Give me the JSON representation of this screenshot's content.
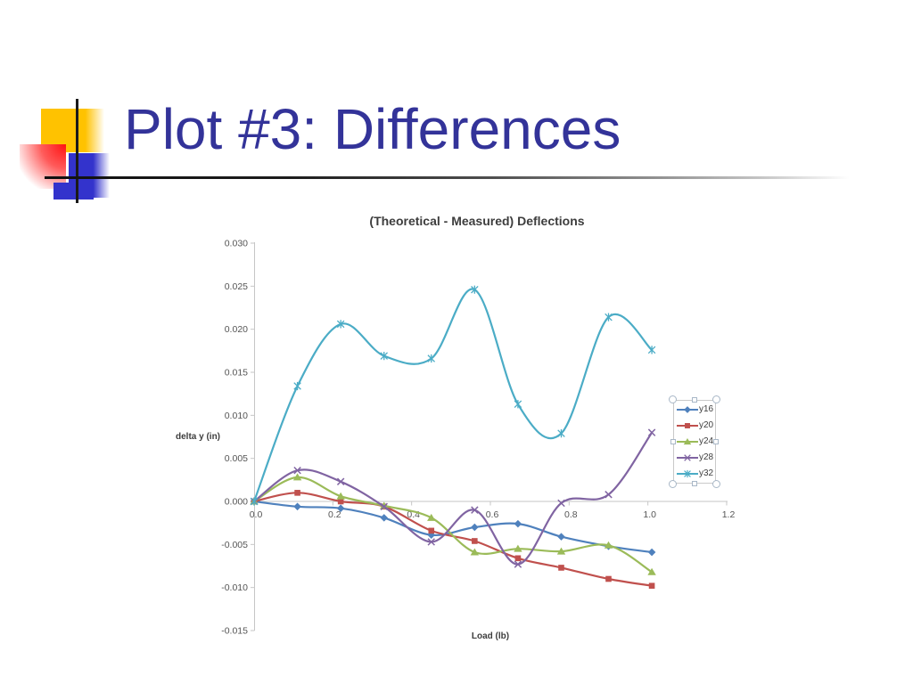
{
  "slide": {
    "title": "Plot #3: Differences"
  },
  "theme": {
    "title_color": "#333399",
    "accent_yellow": "#FFC200",
    "accent_red": "#FF1111",
    "accent_blue": "#3333CC",
    "axis_color": "#c6c6c6",
    "tick_text_color": "#555555"
  },
  "chart_data": {
    "type": "line",
    "title": "(Theoretical - Measured) Deflections",
    "xlabel": "Load (lb)",
    "ylabel": "delta y (in)",
    "smooth": true,
    "grid": false,
    "legend_position": "right-middle",
    "xlim": [
      0,
      1.2
    ],
    "ylim": [
      -0.015,
      0.03
    ],
    "x_ticks": [
      {
        "v": 0.0,
        "label": "0.0"
      },
      {
        "v": 0.2,
        "label": "0.2"
      },
      {
        "v": 0.4,
        "label": "0.4"
      },
      {
        "v": 0.6,
        "label": "0.6"
      },
      {
        "v": 0.8,
        "label": "0.8"
      },
      {
        "v": 1.0,
        "label": "1.0"
      },
      {
        "v": 1.2,
        "label": "1.2"
      }
    ],
    "y_ticks": [
      {
        "v": 0.03,
        "label": "0.030"
      },
      {
        "v": 0.025,
        "label": "0.025"
      },
      {
        "v": 0.02,
        "label": "0.020"
      },
      {
        "v": 0.015,
        "label": "0.015"
      },
      {
        "v": 0.01,
        "label": "0.010"
      },
      {
        "v": 0.005,
        "label": "0.005"
      },
      {
        "v": 0.0,
        "label": "0.000"
      },
      {
        "v": -0.005,
        "label": "-0.005"
      },
      {
        "v": -0.01,
        "label": "-0.010"
      },
      {
        "v": -0.015,
        "label": "-0.015"
      }
    ],
    "x": [
      0,
      0.11,
      0.22,
      0.33,
      0.45,
      0.56,
      0.67,
      0.78,
      0.9,
      1.01
    ],
    "series": [
      {
        "name": "y16",
        "color": "#4F81BD",
        "marker": "diamond",
        "values": [
          0,
          -0.0006,
          -0.0008,
          -0.0019,
          -0.0039,
          -0.003,
          -0.0026,
          -0.0041,
          -0.0052,
          -0.0059
        ]
      },
      {
        "name": "y20",
        "color": "#C0504D",
        "marker": "square",
        "values": [
          0,
          0.001,
          0.0,
          -0.0006,
          -0.0034,
          -0.0046,
          -0.0066,
          -0.0077,
          -0.009,
          -0.0098
        ]
      },
      {
        "name": "y24",
        "color": "#9BBB59",
        "marker": "triangle",
        "values": [
          0,
          0.0028,
          0.0006,
          -0.0005,
          -0.0019,
          -0.0059,
          -0.0055,
          -0.0058,
          -0.0051,
          -0.0082
        ]
      },
      {
        "name": "y28",
        "color": "#8064A2",
        "marker": "x",
        "values": [
          0,
          0.0036,
          0.0023,
          -0.0006,
          -0.0047,
          -0.001,
          -0.0073,
          -0.0002,
          0.0008,
          0.008
        ]
      },
      {
        "name": "y32",
        "color": "#4BACC6",
        "marker": "asterisk",
        "values": [
          0,
          0.0134,
          0.0206,
          0.0169,
          0.0166,
          0.0246,
          0.0113,
          0.0079,
          0.0214,
          0.0176
        ]
      }
    ]
  }
}
